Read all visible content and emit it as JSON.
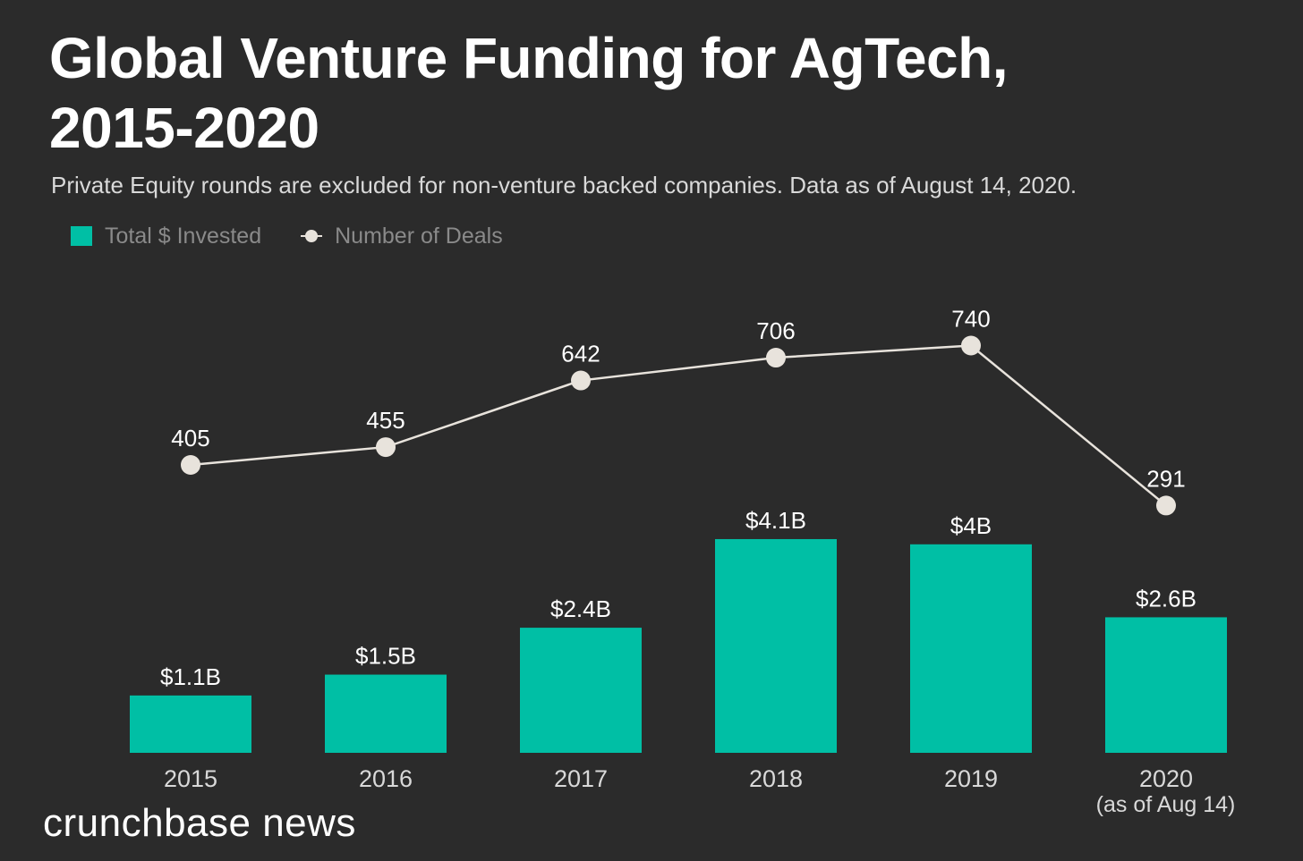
{
  "title_line1": "Global Venture Funding for AgTech,",
  "title_line2": "2015-2020",
  "subtitle": "Private Equity rounds are excluded for non-venture backed companies. Data as of August 14, 2020.",
  "legend": {
    "bars_label": "Total $ Invested",
    "line_label": "Number of Deals"
  },
  "colors": {
    "background": "#2b2b2b",
    "bar": "#00bfa5",
    "line": "#e8e3dc"
  },
  "chart_data": {
    "type": "bar",
    "categories": [
      "2015",
      "2016",
      "2017",
      "2018",
      "2019",
      "2020"
    ],
    "category_note": "(as of Aug 14)",
    "series": [
      {
        "name": "Total $ Invested",
        "type": "bar",
        "values": [
          1.1,
          1.5,
          2.4,
          4.1,
          4.0,
          2.6
        ],
        "labels": [
          "$1.1B",
          "$1.5B",
          "$2.4B",
          "$4.1B",
          "$4B",
          "$2.6B"
        ]
      },
      {
        "name": "Number of Deals",
        "type": "line",
        "values": [
          405,
          455,
          642,
          706,
          740,
          291
        ],
        "labels": [
          "405",
          "455",
          "642",
          "706",
          "740",
          "291"
        ]
      }
    ],
    "legend_position": "top-left",
    "grid": false
  },
  "brand": "crunchbase news"
}
